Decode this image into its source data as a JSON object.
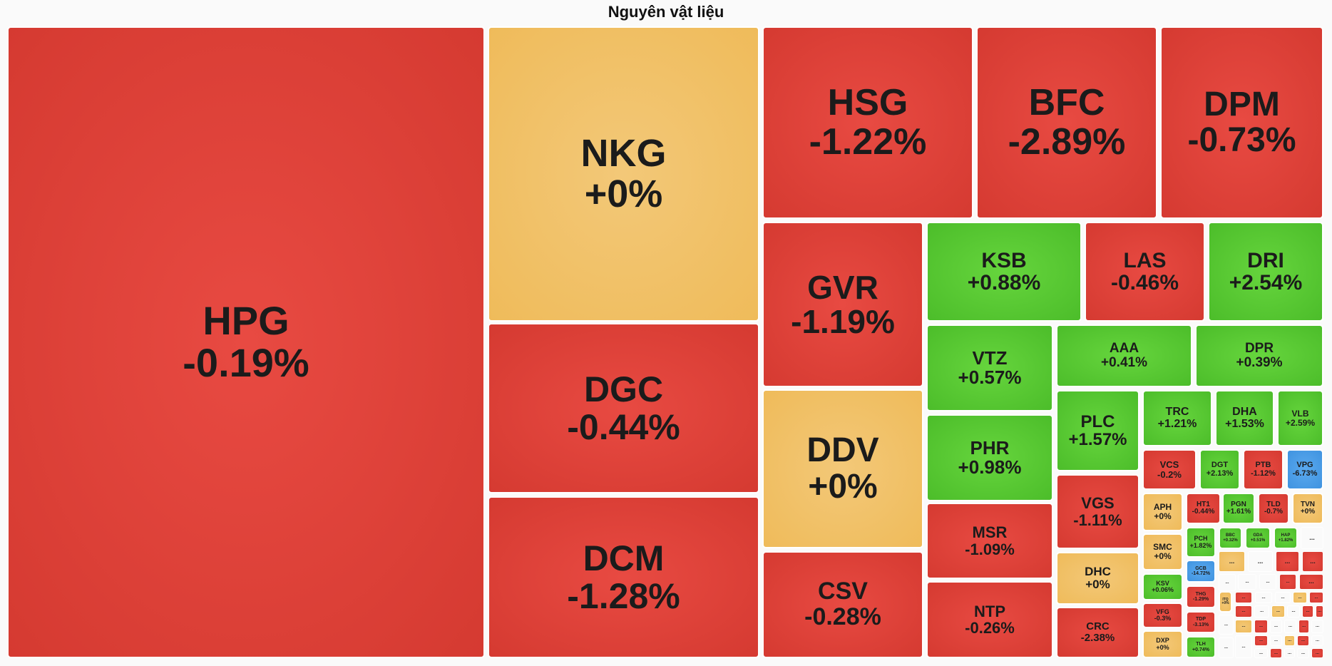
{
  "chart_data": {
    "type": "treemap",
    "title": "Nguyên vật liệu",
    "colors": {
      "down": "#dc3d35",
      "up": "#55c630",
      "unchanged": "#f1c16a",
      "floor": "#4a9fe6",
      "separator": "#ffffff"
    },
    "tiles": [
      {
        "symbol": "HPG",
        "change": "-0.19%"
      },
      {
        "symbol": "NKG",
        "change": "+0%"
      },
      {
        "symbol": "DGC",
        "change": "-0.44%"
      },
      {
        "symbol": "DCM",
        "change": "-1.28%"
      },
      {
        "symbol": "HSG",
        "change": "-1.22%"
      },
      {
        "symbol": "BFC",
        "change": "-2.89%"
      },
      {
        "symbol": "DPM",
        "change": "-0.73%"
      },
      {
        "symbol": "GVR",
        "change": "-1.19%"
      },
      {
        "symbol": "DDV",
        "change": "+0%"
      },
      {
        "symbol": "CSV",
        "change": "-0.28%"
      },
      {
        "symbol": "KSB",
        "change": "+0.88%"
      },
      {
        "symbol": "LAS",
        "change": "-0.46%"
      },
      {
        "symbol": "DRI",
        "change": "+2.54%"
      },
      {
        "symbol": "VTZ",
        "change": "+0.57%"
      },
      {
        "symbol": "PHR",
        "change": "+0.98%"
      },
      {
        "symbol": "MSR",
        "change": "-1.09%"
      },
      {
        "symbol": "NTP",
        "change": "-0.26%"
      },
      {
        "symbol": "AAA",
        "change": "+0.41%"
      },
      {
        "symbol": "DPR",
        "change": "+0.39%"
      },
      {
        "symbol": "PLC",
        "change": "+1.57%"
      },
      {
        "symbol": "VGS",
        "change": "-1.11%"
      },
      {
        "symbol": "DHC",
        "change": "+0%"
      },
      {
        "symbol": "CRC",
        "change": "-2.38%"
      },
      {
        "symbol": "TRC",
        "change": "+1.21%"
      },
      {
        "symbol": "DHA",
        "change": "+1.53%"
      },
      {
        "symbol": "VLB",
        "change": "+2.59%"
      },
      {
        "symbol": "VCS",
        "change": "-0.2%"
      },
      {
        "symbol": "DGT",
        "change": "+2.13%"
      },
      {
        "symbol": "PTB",
        "change": "-1.12%"
      },
      {
        "symbol": "VPG",
        "change": "-6.73%"
      },
      {
        "symbol": "APH",
        "change": "+0%"
      },
      {
        "symbol": "HT1",
        "change": "-0.44%"
      },
      {
        "symbol": "PGN",
        "change": "+1.61%"
      },
      {
        "symbol": "TLD",
        "change": "-0.7%"
      },
      {
        "symbol": "TVN",
        "change": "+0%"
      },
      {
        "symbol": "SMC",
        "change": "+0%"
      },
      {
        "symbol": "PCH",
        "change": "+1.82%"
      },
      {
        "symbol": "BBC",
        "change": "+0.32%"
      },
      {
        "symbol": "GDA",
        "change": "+0.51%"
      },
      {
        "symbol": "HAP",
        "change": "+1.82%"
      },
      {
        "symbol": "KSV",
        "change": "+0.06%"
      },
      {
        "symbol": "GCB",
        "change": "-14.72%"
      },
      {
        "symbol": "THG",
        "change": "-1.29%"
      },
      {
        "symbol": "ITQ",
        "change": "+0%"
      },
      {
        "symbol": "VFG",
        "change": "-0.3%"
      },
      {
        "symbol": "TDP",
        "change": "-3.13%"
      },
      {
        "symbol": "DXP",
        "change": "+0%"
      },
      {
        "symbol": "TLH",
        "change": "+0.74%"
      }
    ],
    "ellipsis_label": "..."
  }
}
